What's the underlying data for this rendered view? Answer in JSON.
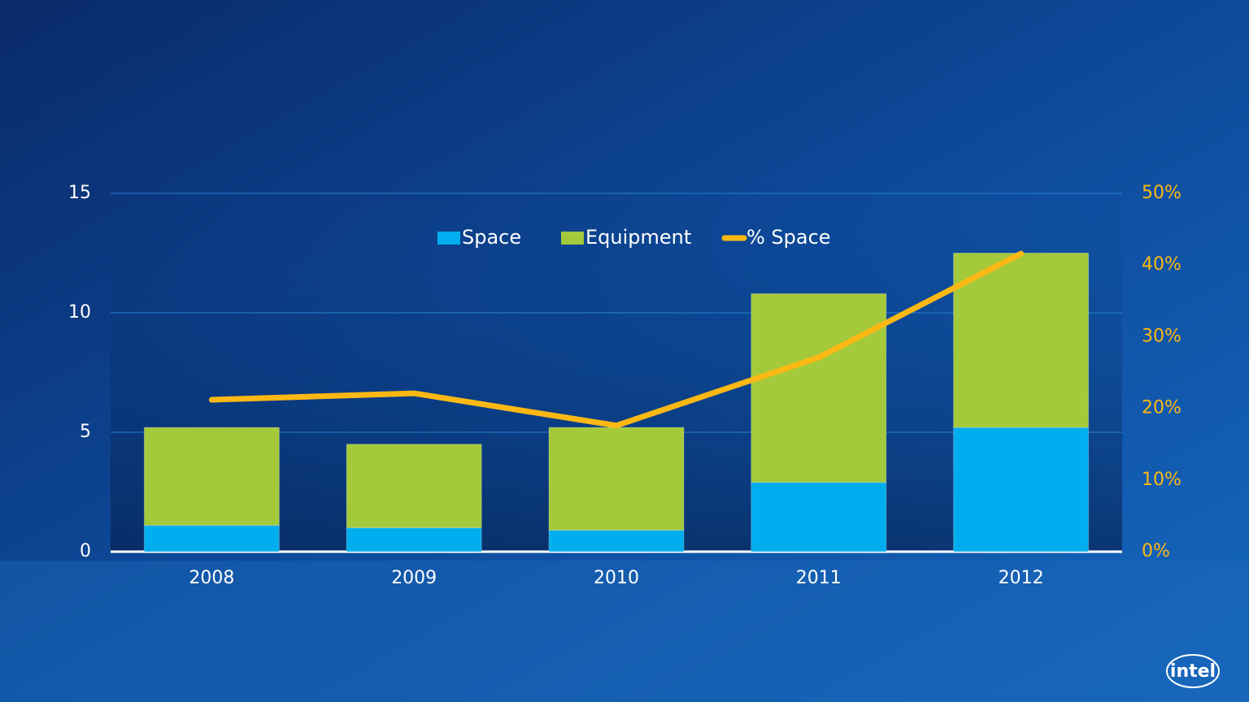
{
  "chart_data": {
    "type": "bar",
    "categories": [
      "2008",
      "2009",
      "2010",
      "2011",
      "2012"
    ],
    "series": [
      {
        "name": "Space",
        "type": "bar",
        "color": "#00aeef",
        "values": [
          1.1,
          1.0,
          0.9,
          2.9,
          5.2
        ]
      },
      {
        "name": "Equipment",
        "type": "bar",
        "color": "#a4c93a",
        "values": [
          4.1,
          3.5,
          4.3,
          7.9,
          7.3
        ]
      },
      {
        "name": "% Space",
        "type": "line",
        "axis": "y2",
        "color": "#fdb813",
        "values": [
          21.2,
          22.1,
          17.6,
          27.1,
          41.6
        ]
      }
    ],
    "stacked": true,
    "ylim": [
      0,
      15
    ],
    "yticks": [
      0,
      5,
      10,
      15
    ],
    "y2lim": [
      0,
      50
    ],
    "y2ticks": [
      {
        "value": 0,
        "label": "0%"
      },
      {
        "value": 10,
        "label": "10%"
      },
      {
        "value": 20,
        "label": "20%"
      },
      {
        "value": 30,
        "label": "30%"
      },
      {
        "value": 40,
        "label": "40%"
      },
      {
        "value": 50,
        "label": "50%"
      }
    ],
    "grid": true,
    "legend": "top"
  },
  "logo": "intel"
}
